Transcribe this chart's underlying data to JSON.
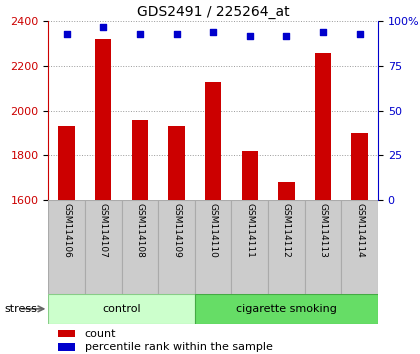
{
  "title": "GDS2491 / 225264_at",
  "samples": [
    "GSM114106",
    "GSM114107",
    "GSM114108",
    "GSM114109",
    "GSM114110",
    "GSM114111",
    "GSM114112",
    "GSM114113",
    "GSM114114"
  ],
  "counts": [
    1930,
    2320,
    1960,
    1930,
    2130,
    1820,
    1680,
    2260,
    1900
  ],
  "percentile_ranks": [
    93,
    97,
    93,
    93,
    94,
    92,
    92,
    94,
    93
  ],
  "groups": [
    {
      "label": "control",
      "start": 0,
      "end": 4,
      "color": "#ccffcc",
      "border": "#88cc88"
    },
    {
      "label": "cigarette smoking",
      "start": 4,
      "end": 9,
      "color": "#66dd66",
      "border": "#44aa44"
    }
  ],
  "bar_color": "#cc0000",
  "dot_color": "#0000cc",
  "ylim_left": [
    1600,
    2400
  ],
  "ylim_right": [
    0,
    100
  ],
  "yticks_left": [
    1600,
    1800,
    2000,
    2200,
    2400
  ],
  "yticks_right": [
    0,
    25,
    50,
    75,
    100
  ],
  "bar_width": 0.45,
  "sample_box_color": "#cccccc",
  "sample_box_edge": "#aaaaaa",
  "legend_items": [
    {
      "label": "count",
      "color": "#cc0000"
    },
    {
      "label": "percentile rank within the sample",
      "color": "#0000cc"
    }
  ],
  "stress_label": "stress",
  "title_fontsize": 10,
  "tick_fontsize": 8,
  "label_fontsize": 8,
  "sample_fontsize": 6.5,
  "group_fontsize": 8
}
